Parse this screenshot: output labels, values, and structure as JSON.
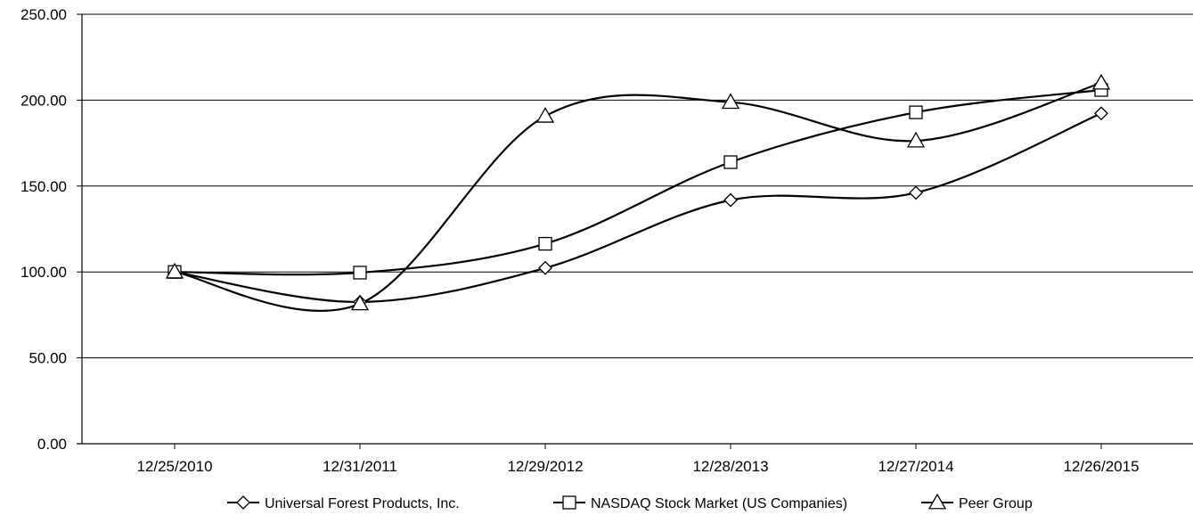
{
  "chart_data": {
    "type": "line",
    "categories": [
      "12/25/2010",
      "12/31/2011",
      "12/29/2012",
      "12/28/2013",
      "12/27/2014",
      "12/26/2015"
    ],
    "ylim": [
      0,
      250
    ],
    "yticks": [
      "0.00",
      "50.00",
      "100.00",
      "150.00",
      "200.00",
      "250.00"
    ],
    "grid": true,
    "smooth": true,
    "legend_position": "bottom",
    "line_color": "#000000",
    "series": [
      {
        "name": "Universal Forest Products, Inc.",
        "marker": "diamond",
        "values": [
          100,
          82.5,
          102.3,
          141.8,
          146.1,
          192.3
        ]
      },
      {
        "name": "NASDAQ Stock Market (US Companies)",
        "marker": "square",
        "values": [
          100,
          99.6,
          116.4,
          163.9,
          192.9,
          205.9
        ]
      },
      {
        "name": "Peer Group",
        "marker": "triangle",
        "values": [
          100,
          81.5,
          190.7,
          198.8,
          176.3,
          210.0
        ]
      }
    ]
  }
}
